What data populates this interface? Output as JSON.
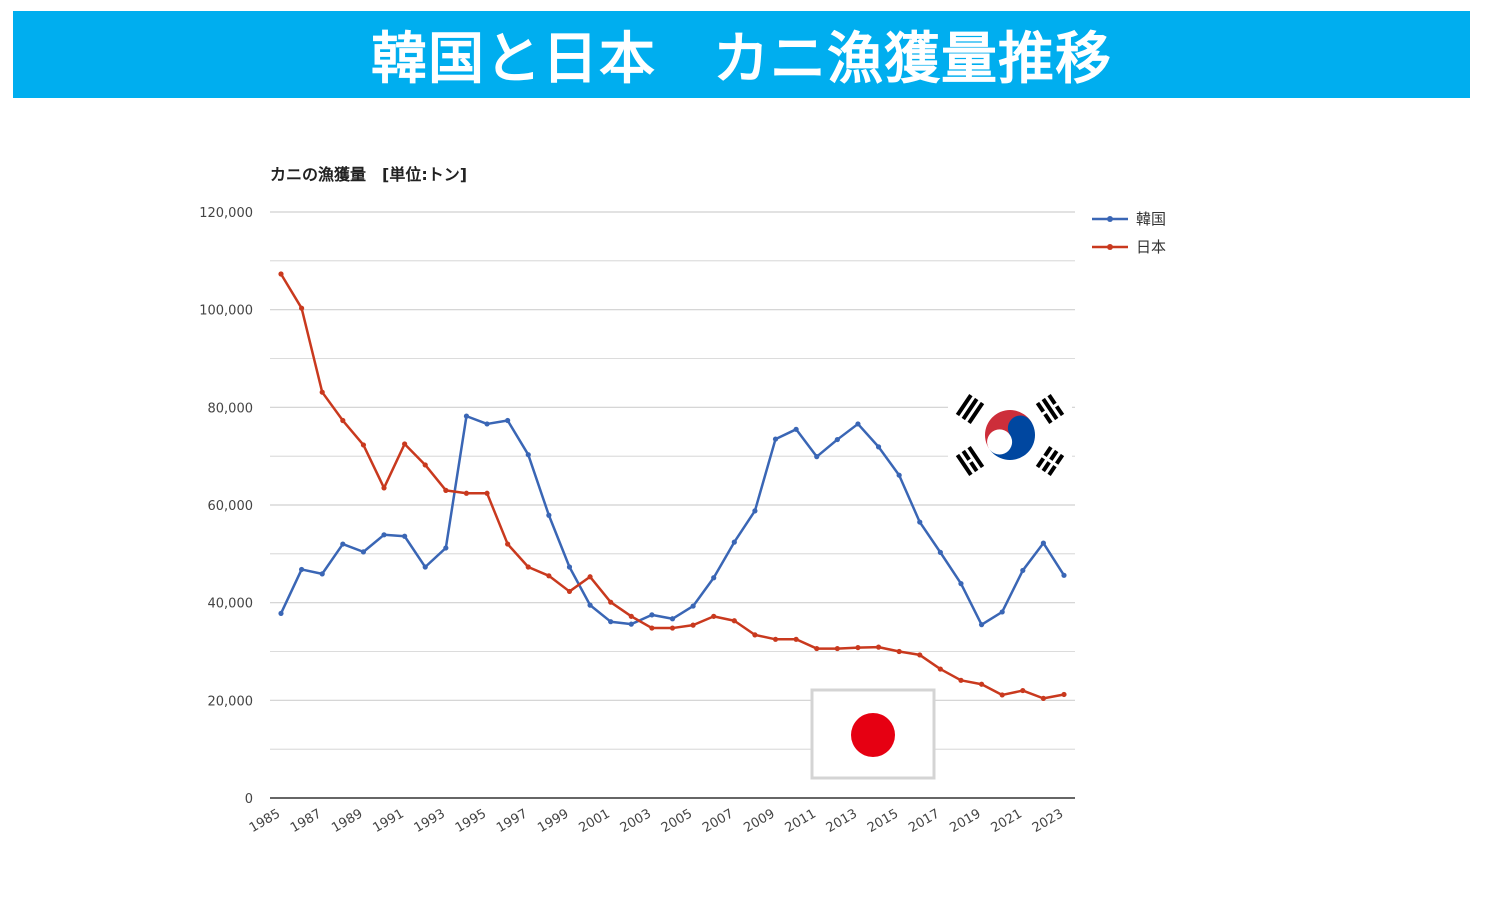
{
  "banner": {
    "title": "韓国と日本　カニ漁獲量推移"
  },
  "colors": {
    "banner_bg": "#00aeef",
    "korea": "#3a66b5",
    "japan": "#c9391e",
    "grid": "#d0d0d0"
  },
  "flags": {
    "korea": "south-korea-flag",
    "japan": "japan-flag"
  },
  "chart_data": {
    "type": "line",
    "title": "カニの漁獲量　[単位:トン]",
    "x": [
      1985,
      1986,
      1987,
      1988,
      1989,
      1990,
      1991,
      1992,
      1993,
      1994,
      1995,
      1996,
      1997,
      1998,
      1999,
      2000,
      2001,
      2002,
      2003,
      2004,
      2005,
      2006,
      2007,
      2008,
      2009,
      2010,
      2011,
      2012,
      2013,
      2014,
      2015,
      2016,
      2017,
      2018,
      2019,
      2020,
      2021,
      2022,
      2023
    ],
    "x_tick_labels": [
      "1985",
      "1987",
      "1989",
      "1991",
      "1993",
      "1995",
      "1997",
      "1999",
      "2001",
      "2003",
      "2005",
      "2007",
      "2009",
      "2011",
      "2013",
      "2015",
      "2017",
      "2019",
      "2021",
      "2023"
    ],
    "y_tick_labels": [
      "0",
      "20,000",
      "40,000",
      "60,000",
      "80,000",
      "100,000",
      "120,000"
    ],
    "ylim": [
      0,
      120000
    ],
    "legend_position": "top-right",
    "series": [
      {
        "name": "韓国",
        "color": "#3a66b5",
        "values": [
          37800,
          46800,
          45900,
          52000,
          50400,
          53900,
          53600,
          47300,
          51200,
          78200,
          76600,
          77300,
          70300,
          57900,
          47300,
          39500,
          36100,
          35600,
          37500,
          36700,
          39300,
          45100,
          52400,
          58800,
          73500,
          75500,
          69900,
          73400,
          76600,
          71900,
          66100,
          56500,
          50300,
          43900,
          35500,
          38100,
          46600,
          52200,
          45600
        ]
      },
      {
        "name": "日本",
        "color": "#c9391e",
        "values": [
          107300,
          100300,
          83100,
          77300,
          72300,
          63500,
          72500,
          68200,
          63000,
          62400,
          62400,
          52000,
          47300,
          45500,
          42300,
          45300,
          40100,
          37200,
          34800,
          34800,
          35400,
          37200,
          36300,
          33400,
          32500,
          32500,
          30600,
          30600,
          30800,
          30900,
          30000,
          29300,
          26400,
          24100,
          23300,
          21100,
          22000,
          20400,
          21200
        ]
      }
    ]
  }
}
